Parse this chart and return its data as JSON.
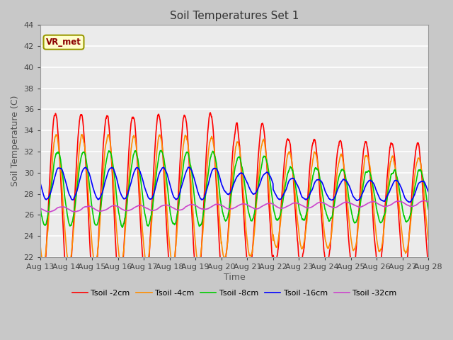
{
  "title": "Soil Temperatures Set 1",
  "xlabel": "Time",
  "ylabel": "Soil Temperature (C)",
  "ylim": [
    22,
    44
  ],
  "yticks": [
    22,
    24,
    26,
    28,
    30,
    32,
    34,
    36,
    38,
    40,
    42,
    44
  ],
  "xtick_labels": [
    "Aug 13",
    "Aug 14",
    "Aug 15",
    "Aug 16",
    "Aug 17",
    "Aug 18",
    "Aug 19",
    "Aug 20",
    "Aug 21",
    "Aug 22",
    "Aug 23",
    "Aug 24",
    "Aug 25",
    "Aug 26",
    "Aug 27",
    "Aug 28"
  ],
  "legend_labels": [
    "Tsoil -2cm",
    "Tsoil -4cm",
    "Tsoil -8cm",
    "Tsoil -16cm",
    "Tsoil -32cm"
  ],
  "line_colors": [
    "#ff0000",
    "#ff8c00",
    "#00cc00",
    "#0000ff",
    "#cc44cc"
  ],
  "annotation_text": "VR_met",
  "plot_bg_color": "#ebebeb",
  "fig_bg_color": "#c8c8c8",
  "grid_color": "#ffffff",
  "line_width": 1.2,
  "title_fontsize": 11,
  "axis_fontsize": 8,
  "label_fontsize": 9
}
